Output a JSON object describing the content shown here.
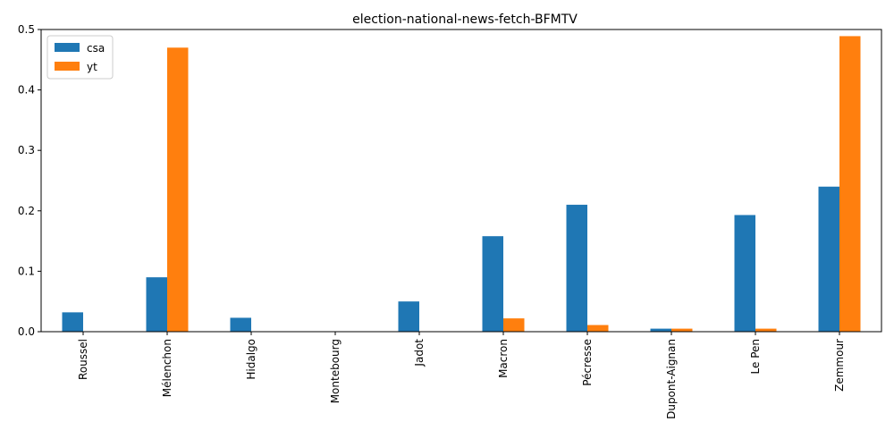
{
  "chart_data": {
    "type": "bar",
    "title": "election-national-news-fetch-BFMTV",
    "xlabel": "",
    "ylabel": "",
    "categories": [
      "Roussel",
      "Mélenchon",
      "Hidalgo",
      "Montebourg",
      "Jadot",
      "Macron",
      "Pécresse",
      "Dupont-Aignan",
      "Le Pen",
      "Zemmour"
    ],
    "series": [
      {
        "name": "csa",
        "color": "#1f77b4",
        "values": [
          0.032,
          0.09,
          0.023,
          0.0,
          0.05,
          0.158,
          0.21,
          0.005,
          0.193,
          0.24
        ]
      },
      {
        "name": "yt",
        "color": "#ff7f0e",
        "values": [
          0.0,
          0.47,
          0.0,
          0.0,
          0.0,
          0.022,
          0.011,
          0.005,
          0.005,
          0.489
        ]
      }
    ],
    "ylim": [
      0,
      0.5
    ],
    "yticks": [
      0.0,
      0.1,
      0.2,
      0.3,
      0.4,
      0.5
    ],
    "ytick_labels": [
      "0.0",
      "0.1",
      "0.2",
      "0.3",
      "0.4",
      "0.5"
    ],
    "grid": false,
    "legend": "top-left"
  }
}
